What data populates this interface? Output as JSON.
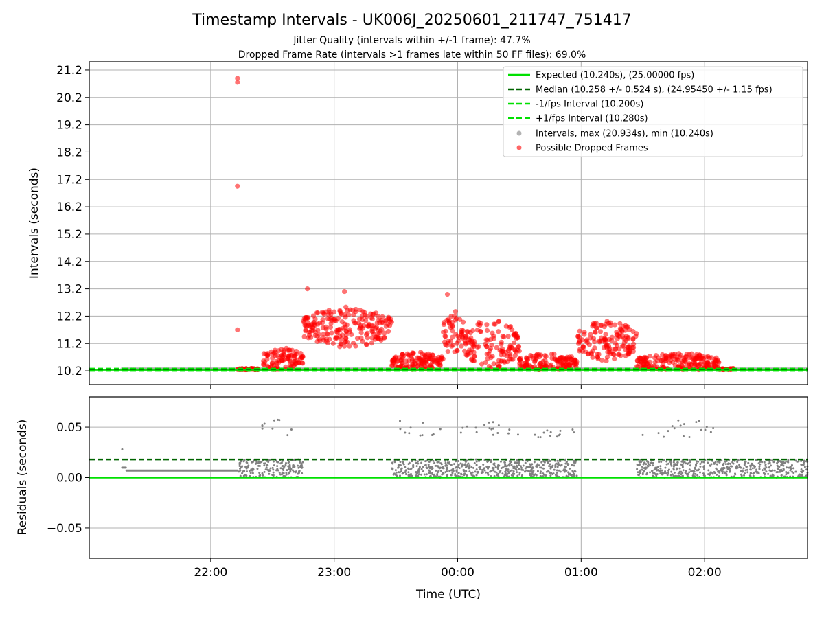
{
  "chart_data": [
    {
      "type": "scatter",
      "title": "Timestamp Intervals - UK006J_20250601_211747_751417",
      "subtitle_lines": [
        "Jitter Quality (intervals within +/-1 frame): 47.7%",
        "Dropped Frame Rate (intervals >1 frames late within 50 FF files): 69.0%"
      ],
      "ylabel": "Intervals (seconds)",
      "ylim": [
        9.7,
        21.5
      ],
      "yticks": [
        10.2,
        11.2,
        12.2,
        13.2,
        14.2,
        15.2,
        16.2,
        17.2,
        18.2,
        19.2,
        20.2,
        21.2
      ],
      "grid": true,
      "legend_position": "top-right",
      "lines": [
        {
          "name": "Expected (10.240s), (25.00000 fps)",
          "y": 10.24,
          "color": "#00e000",
          "style": "solid"
        },
        {
          "name": "Median (10.258 +/- 0.524 s), (24.95450 +/- 1.15 fps)",
          "y": 10.258,
          "color": "#006400",
          "style": "dashed"
        },
        {
          "name": "-1/fps Interval (10.200s)",
          "y": 10.2,
          "color": "#00e000",
          "style": "dashed"
        },
        {
          "name": "+1/fps Interval (10.280s)",
          "y": 10.28,
          "color": "#00e000",
          "style": "dashed"
        }
      ],
      "series": [
        {
          "name": "Intervals, max (20.934s), min (10.240s)",
          "color": "#808080",
          "x_range": [
            "21:17",
            "02:50"
          ],
          "max": 20.934,
          "min": 10.24
        },
        {
          "name": "Possible Dropped Frames",
          "color": "#ff0000",
          "outliers": [
            [
              "22:13",
              20.9
            ],
            [
              "22:13",
              20.75
            ],
            [
              "22:13",
              16.95
            ],
            [
              "22:13",
              11.7
            ],
            [
              "22:47",
              13.2
            ],
            [
              "23:05",
              13.1
            ],
            [
              "23:55",
              13.0
            ]
          ],
          "bands": [
            {
              "start": "22:13",
              "end": "22:23",
              "mean": 10.24,
              "amp": 0.02
            },
            {
              "start": "22:25",
              "end": "22:45",
              "mean": 10.6,
              "amp": 0.45
            },
            {
              "start": "22:45",
              "end": "23:28",
              "mean": 11.8,
              "amp": 0.75
            },
            {
              "start": "23:28",
              "end": "23:53",
              "mean": 10.55,
              "amp": 0.35
            },
            {
              "start": "23:53",
              "end": "00:03",
              "mean": 11.6,
              "amp": 0.85
            },
            {
              "start": "00:03",
              "end": "00:30",
              "mean": 11.2,
              "amp": 0.9
            },
            {
              "start": "00:30",
              "end": "00:58",
              "mean": 10.5,
              "amp": 0.35
            },
            {
              "start": "00:58",
              "end": "01:27",
              "mean": 11.3,
              "amp": 0.75
            },
            {
              "start": "01:27",
              "end": "02:07",
              "mean": 10.5,
              "amp": 0.35
            },
            {
              "start": "02:07",
              "end": "02:14",
              "mean": 10.24,
              "amp": 0.02
            }
          ]
        }
      ]
    },
    {
      "type": "scatter",
      "xlabel": "Time (UTC)",
      "ylabel": "Residuals (seconds)",
      "ylim": [
        -0.08,
        0.08
      ],
      "yticks": [
        0.05,
        0.0,
        -0.05
      ],
      "ytick_labels": [
        "0.05",
        "0.00",
        "−0.05"
      ],
      "xlim": [
        "21:01",
        "02:50"
      ],
      "xticks": [
        "22:00",
        "23:00",
        "00:00",
        "01:00",
        "02:00"
      ],
      "grid": true,
      "lines": [
        {
          "y": 0.0,
          "color": "#00e000",
          "style": "solid"
        },
        {
          "y": 0.018,
          "color": "#006400",
          "style": "dashed"
        }
      ],
      "series": [
        {
          "color": "#808080",
          "segments": [
            {
              "start": "21:17",
              "end": "22:13",
              "value": 0.007,
              "spike": 0.028
            },
            {
              "start": "22:13",
              "end": "22:25",
              "range": [
                0.0,
                0.018
              ]
            },
            {
              "start": "22:25",
              "end": "22:45",
              "range": [
                0.0,
                0.018
              ],
              "high": [
                0.041,
                0.058
              ]
            },
            {
              "start": "23:28",
              "end": "23:53",
              "range": [
                0.0,
                0.018
              ],
              "high": [
                0.04,
                0.057
              ]
            },
            {
              "start": "23:53",
              "end": "00:30",
              "range": [
                0.0,
                0.018
              ],
              "high": [
                0.042,
                0.056
              ]
            },
            {
              "start": "00:30",
              "end": "00:58",
              "range": [
                0.0,
                0.018
              ],
              "high": [
                0.04,
                0.048
              ]
            },
            {
              "start": "01:27",
              "end": "02:07",
              "range": [
                0.0,
                0.018
              ],
              "high": [
                0.04,
                0.057
              ]
            },
            {
              "start": "02:07",
              "end": "02:50",
              "range": [
                0.0,
                0.018
              ]
            }
          ]
        }
      ]
    }
  ]
}
